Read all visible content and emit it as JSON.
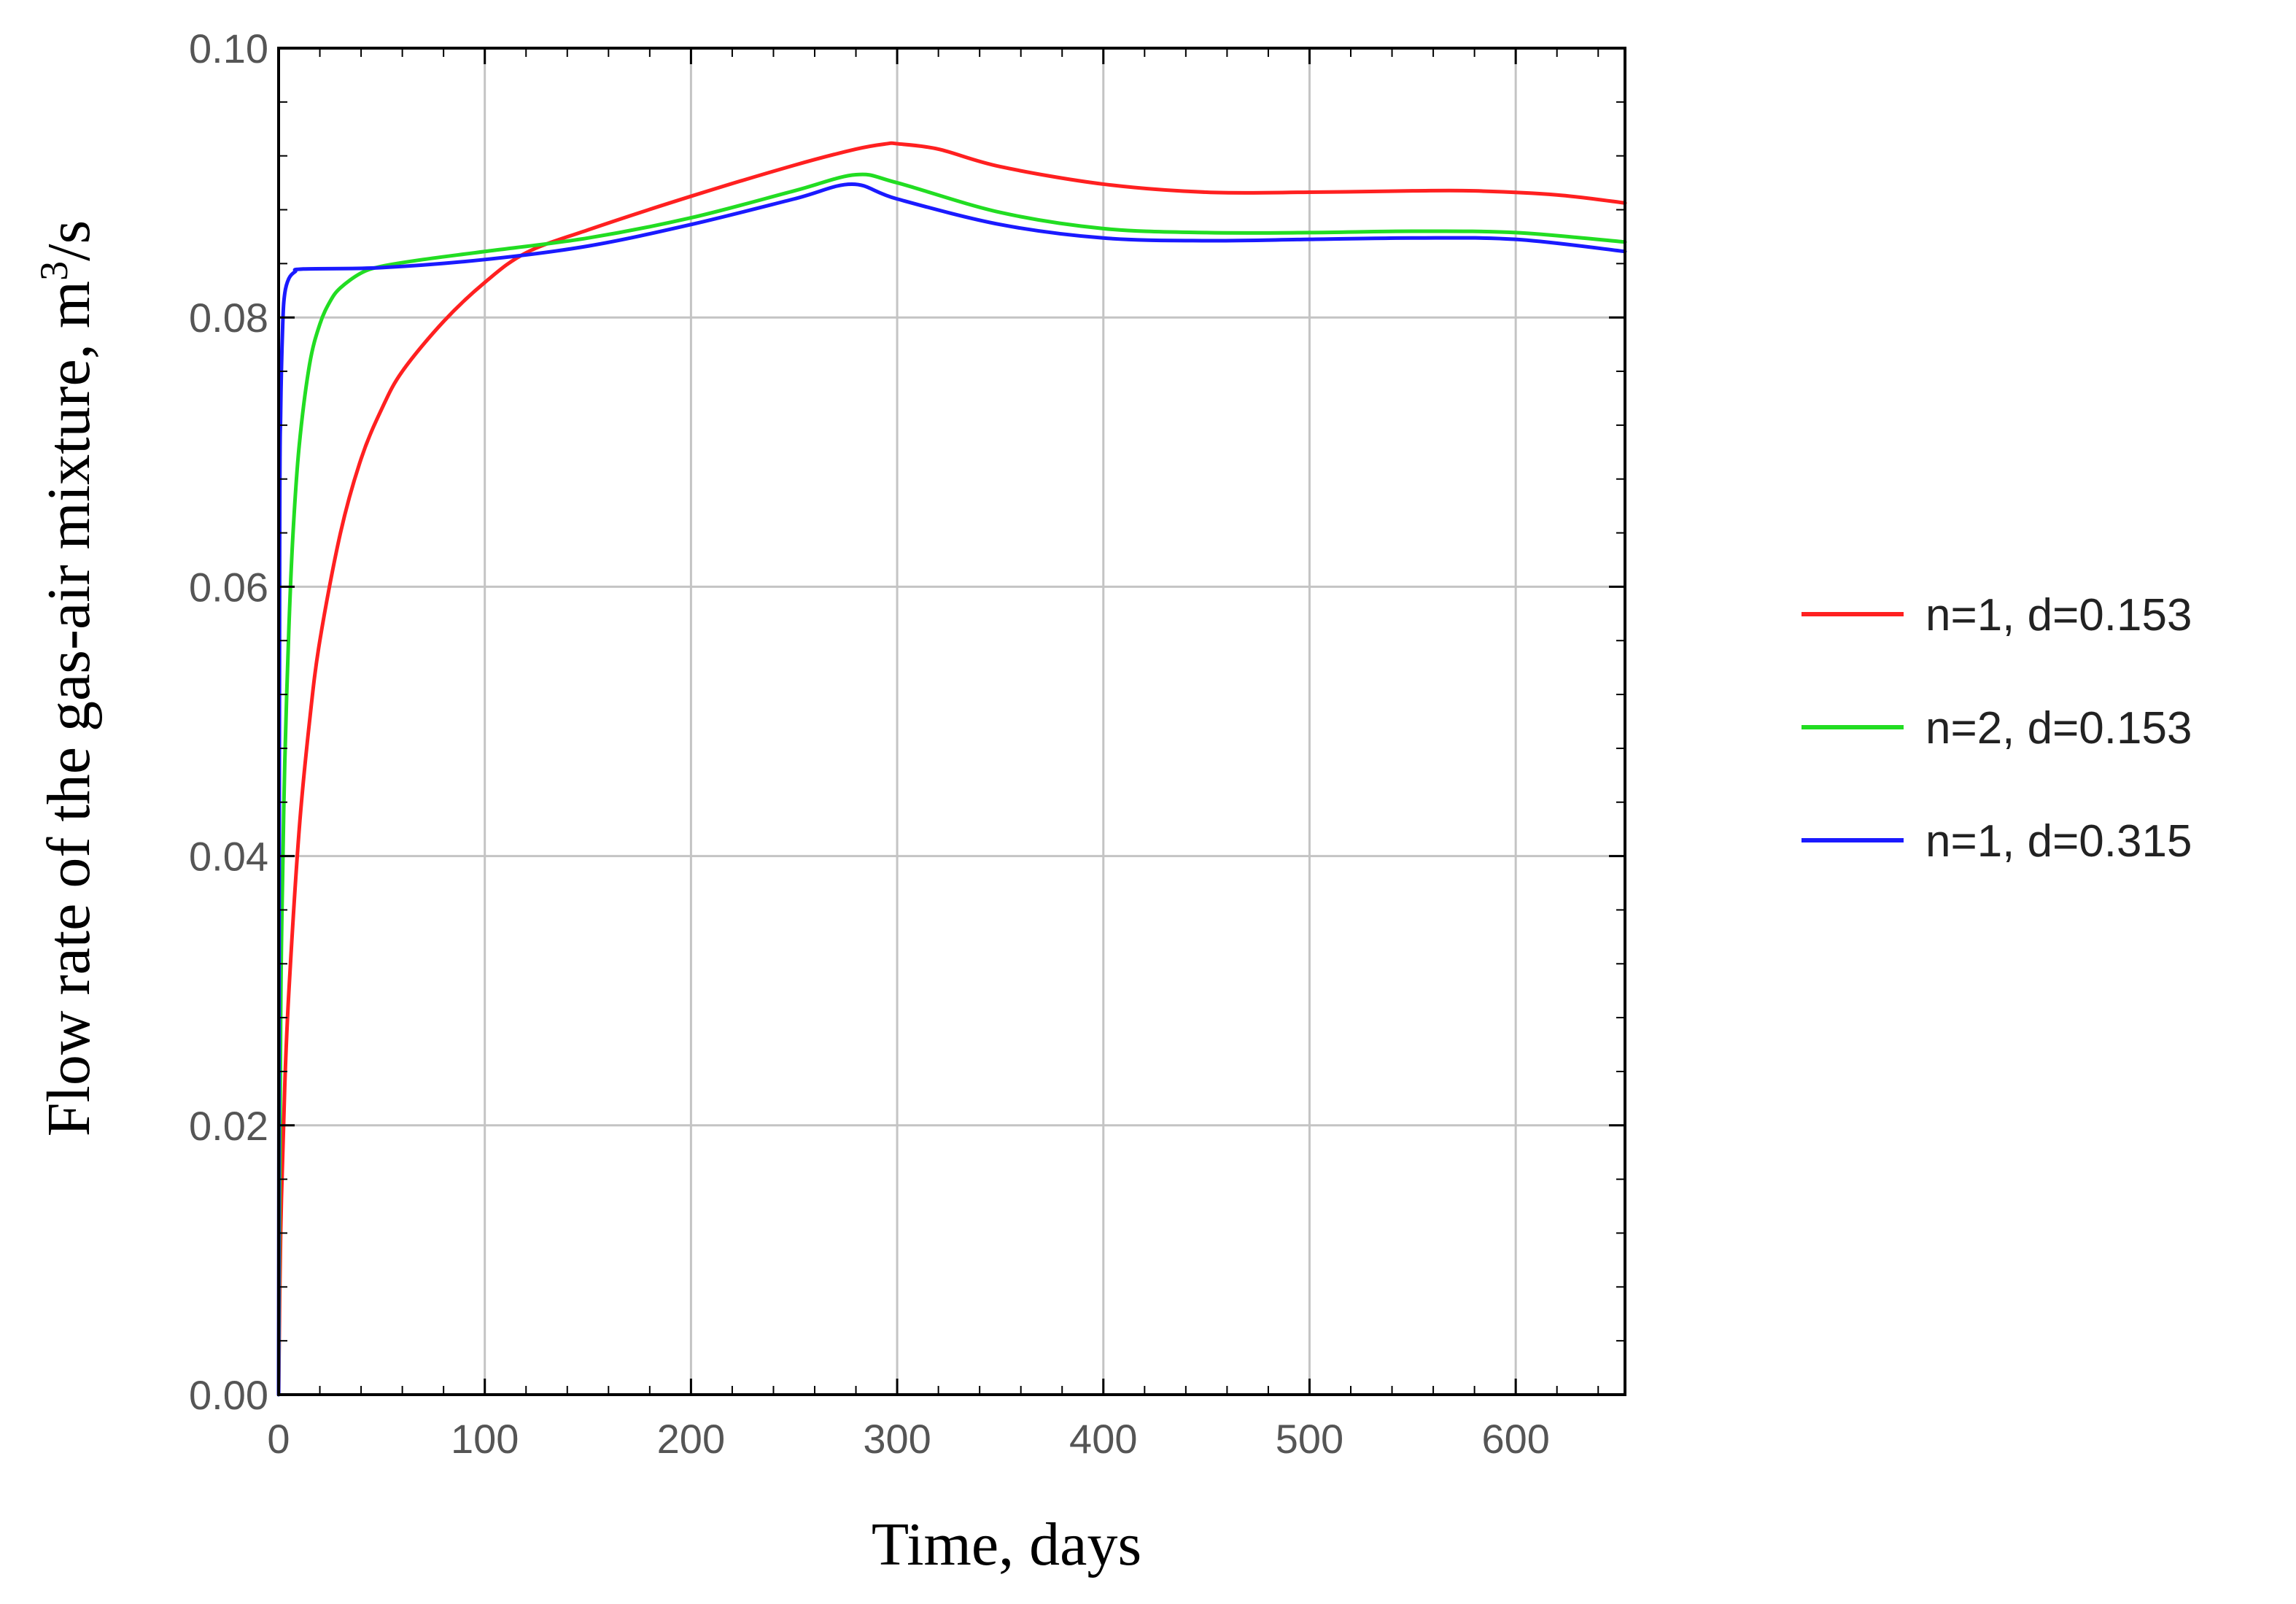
{
  "chart_data": {
    "type": "line",
    "title": "",
    "xlabel": "Time, days",
    "ylabel_main": "Flow rate of the gas-air mixture, m",
    "ylabel_sup": "3",
    "ylabel_tail": "/s",
    "xlim": [
      0,
      653
    ],
    "ylim": [
      0,
      0.1
    ],
    "x_ticks": [
      {
        "value": 0,
        "label": "0"
      },
      {
        "value": 100,
        "label": "100"
      },
      {
        "value": 200,
        "label": "200"
      },
      {
        "value": 300,
        "label": "300"
      },
      {
        "value": 400,
        "label": "400"
      },
      {
        "value": 500,
        "label": "500"
      },
      {
        "value": 600,
        "label": "600"
      }
    ],
    "y_ticks": [
      {
        "value": 0.0,
        "label": "0.00"
      },
      {
        "value": 0.02,
        "label": "0.02"
      },
      {
        "value": 0.04,
        "label": "0.04"
      },
      {
        "value": 0.06,
        "label": "0.06"
      },
      {
        "value": 0.08,
        "label": "0.08"
      },
      {
        "value": 0.1,
        "label": "0.10"
      }
    ],
    "grid": true,
    "legend_position": "right",
    "series": [
      {
        "name": "n=1, d=0.153",
        "color": "#ff2020",
        "x": [
          0,
          1,
          3,
          5,
          10,
          15,
          20,
          30,
          40,
          50,
          60,
          80,
          100,
          120,
          150,
          200,
          250,
          280,
          295,
          300,
          320,
          350,
          400,
          450,
          500,
          550,
          580,
          620,
          653
        ],
        "y": [
          0.0,
          0.012,
          0.023,
          0.03,
          0.042,
          0.05,
          0.056,
          0.064,
          0.0695,
          0.0732,
          0.076,
          0.0797,
          0.0826,
          0.0848,
          0.0865,
          0.089,
          0.0913,
          0.0925,
          0.0929,
          0.0929,
          0.0925,
          0.0912,
          0.0899,
          0.0893,
          0.0893,
          0.0894,
          0.0894,
          0.0891,
          0.0885
        ]
      },
      {
        "name": "n=2, d=0.153",
        "color": "#22dd22",
        "x": [
          0,
          1,
          2,
          3,
          5,
          7,
          10,
          15,
          20,
          25,
          30,
          40,
          50,
          70,
          100,
          150,
          200,
          250,
          280,
          300,
          350,
          400,
          450,
          500,
          550,
          600,
          653
        ],
        "y": [
          0.0,
          0.028,
          0.039,
          0.047,
          0.057,
          0.064,
          0.0705,
          0.0765,
          0.0795,
          0.0812,
          0.0822,
          0.0833,
          0.0838,
          0.0843,
          0.0849,
          0.0859,
          0.0874,
          0.0894,
          0.0906,
          0.09,
          0.0878,
          0.0866,
          0.0863,
          0.0863,
          0.0864,
          0.0863,
          0.0856
        ]
      },
      {
        "name": "n=1, d=0.315",
        "color": "#1a1aff",
        "x": [
          0,
          0.5,
          1,
          2,
          3,
          5,
          8,
          12,
          50,
          100,
          150,
          200,
          250,
          278,
          300,
          350,
          400,
          450,
          500,
          550,
          600,
          653
        ],
        "y": [
          0.0,
          0.062,
          0.073,
          0.0795,
          0.0818,
          0.0829,
          0.0834,
          0.0836,
          0.0837,
          0.0843,
          0.0853,
          0.0869,
          0.0888,
          0.0899,
          0.0888,
          0.0869,
          0.0859,
          0.0857,
          0.0858,
          0.0859,
          0.0858,
          0.0849
        ]
      }
    ]
  }
}
